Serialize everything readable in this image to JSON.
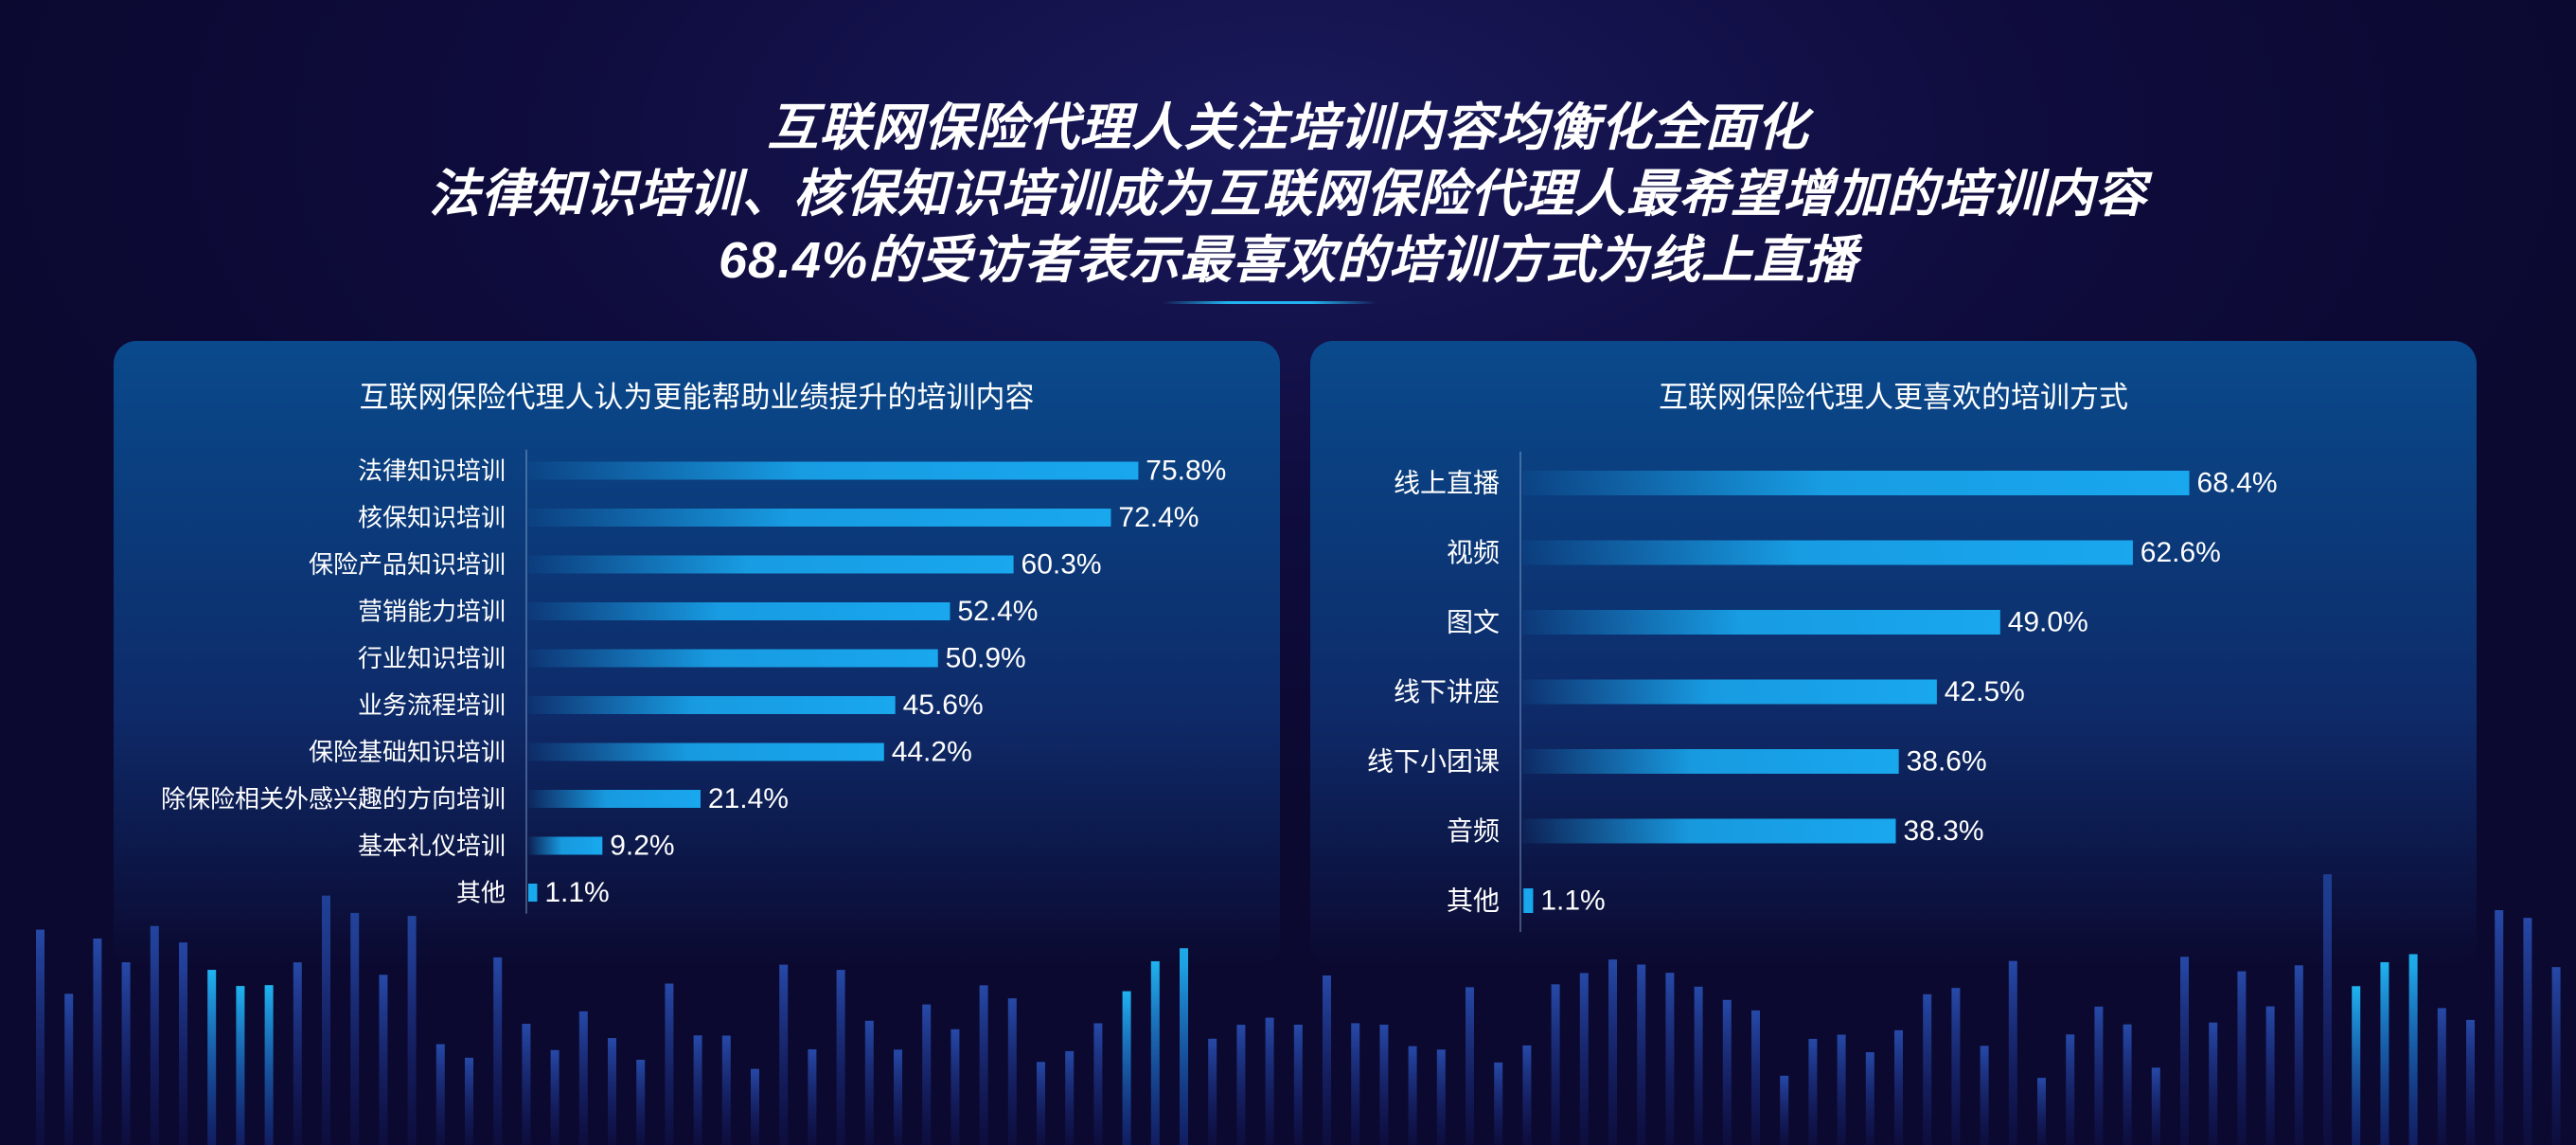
{
  "headline": {
    "line1": "互联网保险代理人关注培训内容均衡化全面化",
    "line2": "法律知识培训、核保知识培训成为互联网保险代理人最希望增加的培训内容",
    "line3": "68.4%的受访者表示最喜欢的培训方式为线上直播"
  },
  "colors": {
    "bar": "#19a7ee",
    "background": "#0f0c3e",
    "panel": "#0a4a8c"
  },
  "chart_data": [
    {
      "type": "bar",
      "orientation": "horizontal",
      "title": "互联网保险代理人认为更能帮助业绩提升的培训内容",
      "categories": [
        "法律知识培训",
        "核保知识培训",
        "保险产品知识培训",
        "营销能力培训",
        "行业知识培训",
        "业务流程培训",
        "保险基础知识培训",
        "除保险相关外感兴趣的方向培训",
        "基本礼仪培训",
        "其他"
      ],
      "values": [
        75.8,
        72.4,
        60.3,
        52.4,
        50.9,
        45.6,
        44.2,
        21.4,
        9.2,
        1.1
      ],
      "labels": [
        "75.8%",
        "72.4%",
        "60.3%",
        "52.4%",
        "50.9%",
        "45.6%",
        "44.2%",
        "21.4%",
        "9.2%",
        "1.1%"
      ],
      "unit": "%",
      "xlim": [
        0,
        100
      ],
      "grid": false
    },
    {
      "type": "bar",
      "orientation": "horizontal",
      "title": "互联网保险代理人更喜欢的培训方式",
      "categories": [
        "线上直播",
        "视频",
        "图文",
        "线下讲座",
        "线下小团课",
        "音频",
        "其他"
      ],
      "values": [
        68.4,
        62.6,
        49.0,
        42.5,
        38.6,
        38.3,
        1.1
      ],
      "labels": [
        "68.4%",
        "62.6%",
        "49.0%",
        "42.5%",
        "38.6%",
        "38.3%",
        "1.1%"
      ],
      "unit": "%",
      "xlim": [
        0,
        100
      ],
      "grid": false
    }
  ]
}
